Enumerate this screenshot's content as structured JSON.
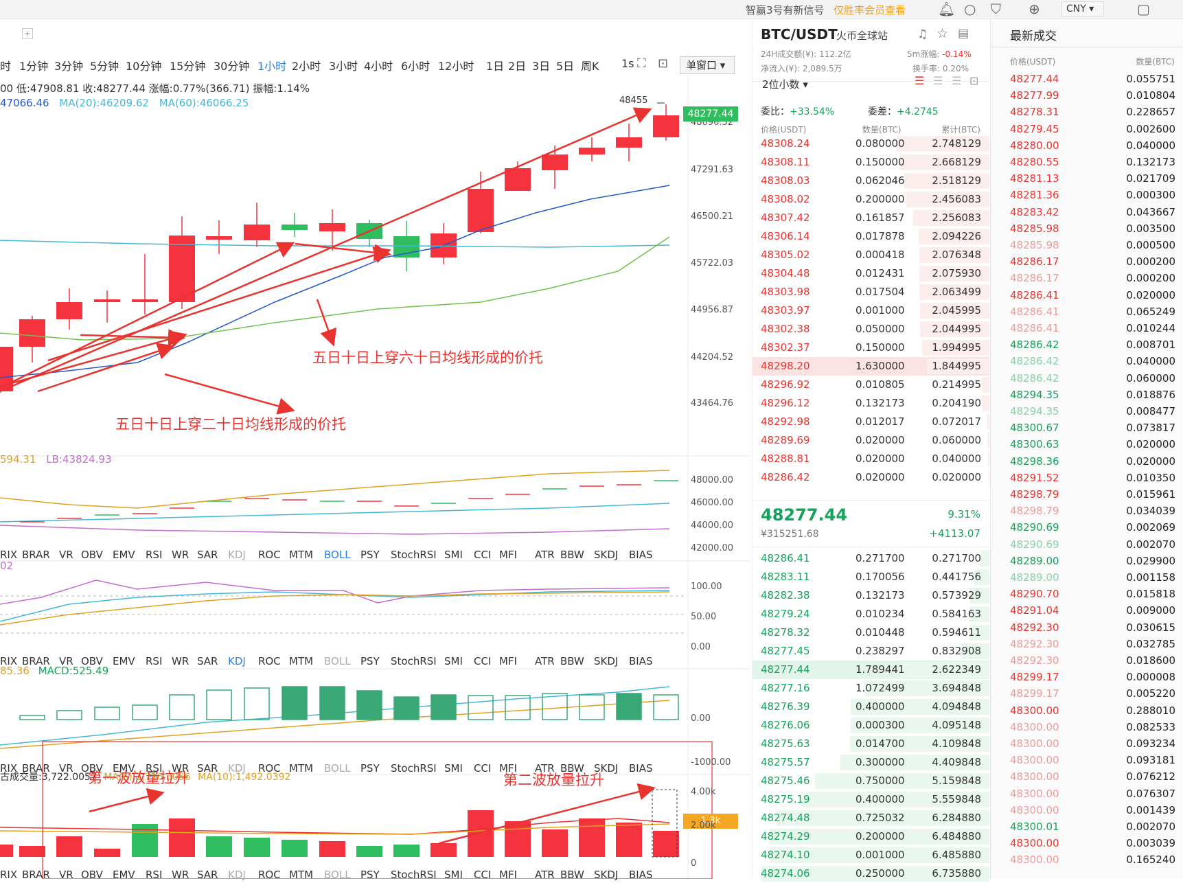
{
  "topbar": {
    "signal_text": "智赢3号有新信号",
    "signal_link": "仅胜率会员查看",
    "currency": "CNY"
  },
  "toolbar": {
    "timeframes": [
      "时",
      "1分钟",
      "3分钟",
      "5分钟",
      "10分钟",
      "15分钟",
      "30分钟",
      "1小时",
      "2小时",
      "3小时",
      "4小时",
      "6小时",
      "12小时",
      "1日",
      "2日",
      "3日",
      "5日",
      "周K",
      "1s"
    ],
    "active_timeframe": "1小时",
    "window_mode": "单窗口"
  },
  "chart": {
    "ohlc_line": "00  低:47908.81  收:48277.44  涨幅:0.77%(366.71)  振幅:1.14%",
    "ma_line": {
      "ma5": "47066.46",
      "ma20": "MA(20):46209.62",
      "ma60": "MA(60):46066.25"
    },
    "high_marker": "48455",
    "price_axis": [
      "48096.52",
      "47291.63",
      "46500.21",
      "45722.03",
      "44956.87",
      "44204.52",
      "43464.76"
    ],
    "current_price_tag": "48277.44",
    "annotation_1": "五日十日上穿六十日均线形成的价托",
    "annotation_2": "五日十日上穿二十日均线形成的价托",
    "boll_line": {
      "a": "594.31",
      "b": "LB:43824.93"
    },
    "boll_axis": [
      "48000.00",
      "46000.00",
      "44000.00",
      "42000.00"
    ],
    "kdj_value": "02",
    "kdj_axis": [
      "100.00",
      "50.00",
      "0.00"
    ],
    "macd_line": {
      "a": "85.36",
      "b": "MACD:525.49"
    },
    "macd_axis": [
      "0.00",
      "-1000.00"
    ],
    "volume_line": {
      "a": "古成交量:3,722.0057",
      "b": "MA(5):1,716.3056",
      "c": "MA(10):1,492.0392"
    },
    "volume_axis": [
      "4.00k",
      "2.00k",
      "0"
    ],
    "volume_tag": "1.3k",
    "annotation_3": "第一波放量拉升",
    "annotation_4": "第二波放量拉升",
    "indicator_tabs": [
      "RIX",
      "BRAR",
      "VR",
      "OBV",
      "EMV",
      "RSI",
      "WR",
      "SAR",
      "KDJ",
      "ROC",
      "MTM",
      "BOLL",
      "PSY",
      "StochRSI",
      "SMI",
      "CCI",
      "MFI",
      "ATR",
      "BBW",
      "SKDJ",
      "BIAS"
    ],
    "row_active": [
      "BOLL",
      "KDJ",
      "",
      ""
    ]
  },
  "orderbook": {
    "pair": "BTC/USDT",
    "exchange": "火币全球站",
    "vol_label": "24H成交额(¥): 112.2亿",
    "change_label": "5m涨幅: ",
    "change_value": "-0.14%",
    "inflow_label": "净流入(¥): 2,089.5万",
    "turnover_label": "换手率: 0.20%",
    "decimals": "2位小数",
    "ratio_label": "委比：",
    "ratio_value": "+33.54%",
    "diff_label": "委差：",
    "diff_value": "+4.2745",
    "headers": [
      "价格(USDT)",
      "数量(BTC)",
      "累计(BTC)"
    ],
    "asks": [
      [
        "48308.24",
        "0.080000",
        "2.748129"
      ],
      [
        "48308.11",
        "0.150000",
        "2.668129"
      ],
      [
        "48308.03",
        "0.062046",
        "2.518129"
      ],
      [
        "48308.02",
        "0.200000",
        "2.456083"
      ],
      [
        "48307.42",
        "0.161857",
        "2.256083"
      ],
      [
        "48306.14",
        "0.017878",
        "2.094226"
      ],
      [
        "48305.02",
        "0.000418",
        "2.076348"
      ],
      [
        "48304.48",
        "0.012431",
        "2.075930"
      ],
      [
        "48303.98",
        "0.017504",
        "2.063499"
      ],
      [
        "48303.97",
        "0.001000",
        "2.045995"
      ],
      [
        "48302.38",
        "0.050000",
        "2.044995"
      ],
      [
        "48302.37",
        "0.150000",
        "1.994995"
      ],
      [
        "48298.20",
        "1.630000",
        "1.844995"
      ],
      [
        "48296.92",
        "0.010805",
        "0.214995"
      ],
      [
        "48296.12",
        "0.132173",
        "0.204190"
      ],
      [
        "48292.98",
        "0.012017",
        "0.072017"
      ],
      [
        "48289.69",
        "0.020000",
        "0.060000"
      ],
      [
        "48288.81",
        "0.020000",
        "0.040000"
      ],
      [
        "48286.42",
        "0.020000",
        "0.020000"
      ]
    ],
    "last_price": "48277.44",
    "last_cny": "¥315251.68",
    "last_pct": "9.31%",
    "last_change": "+4113.07",
    "bids": [
      [
        "48286.41",
        "0.271700",
        "0.271700"
      ],
      [
        "48283.11",
        "0.170056",
        "0.441756"
      ],
      [
        "48282.38",
        "0.132173",
        "0.573929"
      ],
      [
        "48279.24",
        "0.010234",
        "0.584163"
      ],
      [
        "48278.32",
        "0.010448",
        "0.594611"
      ],
      [
        "48277.45",
        "0.238297",
        "0.832908"
      ],
      [
        "48277.44",
        "1.789441",
        "2.622349"
      ],
      [
        "48277.16",
        "1.072499",
        "3.694848"
      ],
      [
        "48276.39",
        "0.400000",
        "4.094848"
      ],
      [
        "48276.06",
        "0.000300",
        "4.095148"
      ],
      [
        "48275.63",
        "0.014700",
        "4.109848"
      ],
      [
        "48275.57",
        "0.300000",
        "4.409848"
      ],
      [
        "48275.46",
        "0.750000",
        "5.159848"
      ],
      [
        "48275.19",
        "0.400000",
        "5.559848"
      ],
      [
        "48274.48",
        "0.725032",
        "6.284880"
      ],
      [
        "48274.29",
        "0.200000",
        "6.484880"
      ],
      [
        "48274.10",
        "0.001000",
        "6.485880"
      ],
      [
        "48274.06",
        "0.250000",
        "6.735880"
      ]
    ]
  },
  "trades": {
    "title": "最新成交",
    "headers": [
      "价格(USDT)",
      "数量(BTC)"
    ],
    "rows": [
      [
        "48277.44",
        "0.055751",
        "red"
      ],
      [
        "48277.99",
        "0.010804",
        "red"
      ],
      [
        "48278.31",
        "0.228657",
        "red"
      ],
      [
        "48279.45",
        "0.002600",
        "red"
      ],
      [
        "48280.00",
        "0.040000",
        "red"
      ],
      [
        "48280.55",
        "0.132173",
        "red"
      ],
      [
        "48281.13",
        "0.021709",
        "red"
      ],
      [
        "48281.36",
        "0.000300",
        "red"
      ],
      [
        "48283.42",
        "0.043667",
        "red"
      ],
      [
        "48285.98",
        "0.003500",
        "red"
      ],
      [
        "48285.98",
        "0.000500",
        "lightred"
      ],
      [
        "48286.17",
        "0.000200",
        "red"
      ],
      [
        "48286.17",
        "0.000200",
        "lightred"
      ],
      [
        "48286.41",
        "0.020000",
        "red"
      ],
      [
        "48286.41",
        "0.065249",
        "lightred"
      ],
      [
        "48286.41",
        "0.010244",
        "lightred"
      ],
      [
        "48286.42",
        "0.008701",
        "green"
      ],
      [
        "48286.42",
        "0.040000",
        "lightgreen"
      ],
      [
        "48286.42",
        "0.060000",
        "lightgreen"
      ],
      [
        "48294.35",
        "0.018876",
        "green"
      ],
      [
        "48294.35",
        "0.008477",
        "lightgreen"
      ],
      [
        "48300.67",
        "0.073817",
        "green"
      ],
      [
        "48300.63",
        "0.020000",
        "green"
      ],
      [
        "48298.36",
        "0.020000",
        "green"
      ],
      [
        "48291.52",
        "0.010350",
        "red"
      ],
      [
        "48298.79",
        "0.015961",
        "red"
      ],
      [
        "48298.79",
        "0.034039",
        "lightred"
      ],
      [
        "48290.69",
        "0.002069",
        "green"
      ],
      [
        "48290.69",
        "0.002070",
        "lightgreen"
      ],
      [
        "48289.00",
        "0.029900",
        "green"
      ],
      [
        "48289.00",
        "0.001158",
        "lightgreen"
      ],
      [
        "48290.70",
        "0.015818",
        "red"
      ],
      [
        "48291.04",
        "0.009000",
        "red"
      ],
      [
        "48292.30",
        "0.030615",
        "red"
      ],
      [
        "48292.30",
        "0.032785",
        "lightred"
      ],
      [
        "48292.30",
        "0.018600",
        "lightred"
      ],
      [
        "48299.17",
        "0.000008",
        "red"
      ],
      [
        "48299.17",
        "0.005220",
        "lightred"
      ],
      [
        "48300.00",
        "0.288010",
        "red"
      ],
      [
        "48300.00",
        "0.082533",
        "lightred"
      ],
      [
        "48300.00",
        "0.093234",
        "lightred"
      ],
      [
        "48300.00",
        "0.093181",
        "lightred"
      ],
      [
        "48300.00",
        "0.076212",
        "lightred"
      ],
      [
        "48300.00",
        "0.076307",
        "lightred"
      ],
      [
        "48300.00",
        "0.001439",
        "lightred"
      ],
      [
        "48300.01",
        "0.002070",
        "green"
      ],
      [
        "48300.00",
        "0.003039",
        "red"
      ],
      [
        "48300.00",
        "0.165240",
        "lightred"
      ]
    ]
  },
  "colors": {
    "up": "#f5333f",
    "down": "#2fbd60",
    "ma5": "#2458c8",
    "ma20": "#44b6d8",
    "ma60": "#6fc24a",
    "accent": "#2a7de1",
    "annotation": "#e8332f"
  }
}
